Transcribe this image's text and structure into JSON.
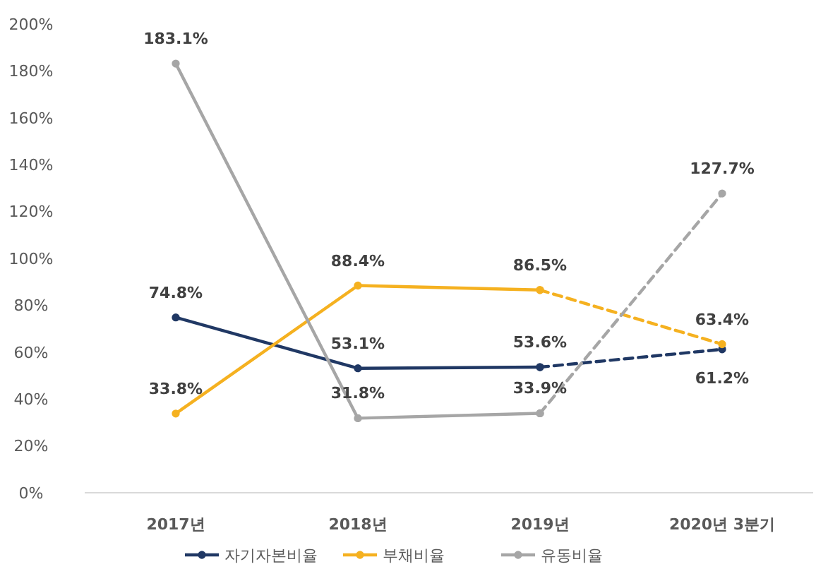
{
  "chart_data": {
    "type": "line",
    "categories": [
      "2017년",
      "2018년",
      "2019년",
      "2020년 3분기"
    ],
    "ylim": [
      0,
      200
    ],
    "yticks": [
      {
        "value": 0,
        "label": "0%"
      },
      {
        "value": 20,
        "label": "20%"
      },
      {
        "value": 40,
        "label": "40%"
      },
      {
        "value": 60,
        "label": "60%"
      },
      {
        "value": 80,
        "label": "80%"
      },
      {
        "value": 100,
        "label": "100%"
      },
      {
        "value": 120,
        "label": "120%"
      },
      {
        "value": 140,
        "label": "140%"
      },
      {
        "value": 160,
        "label": "160%"
      },
      {
        "value": 180,
        "label": "180%"
      },
      {
        "value": 200,
        "label": "200%"
      }
    ],
    "grid": false,
    "legend": "bottom",
    "marker": "circle",
    "line_style": "solid",
    "series": [
      {
        "name": "자기자본비율",
        "color": "#203864",
        "values": [
          74.8,
          53.1,
          53.6,
          null
        ],
        "value_labels": [
          "74.8%",
          "53.1%",
          "53.6%",
          null
        ]
      },
      {
        "name": "부채비율",
        "color": "#f5b120",
        "values": [
          33.8,
          88.4,
          86.5,
          null
        ],
        "value_labels": [
          "33.8%",
          "88.4%",
          "86.5%",
          null
        ]
      },
      {
        "name": "유동비율",
        "color": "#a6a6a6",
        "values": [
          183.1,
          31.8,
          33.9,
          null
        ],
        "value_labels": [
          "183.1%",
          "31.8%",
          "33.9%",
          null
        ]
      },
      {
        "color": "#203864",
        "line_style": "dashed",
        "values": [
          null,
          null,
          53.6,
          61.2
        ],
        "value_labels": [
          null,
          null,
          null,
          "61.2%"
        ]
      },
      {
        "color": "#f5b120",
        "line_style": "dashed",
        "values": [
          null,
          null,
          86.5,
          63.4
        ],
        "value_labels": [
          null,
          null,
          null,
          "63.4%"
        ]
      },
      {
        "color": "#a6a6a6",
        "line_style": "dashed",
        "values": [
          null,
          null,
          33.9,
          127.7
        ],
        "value_labels": [
          null,
          null,
          null,
          "127.7%"
        ]
      }
    ]
  }
}
